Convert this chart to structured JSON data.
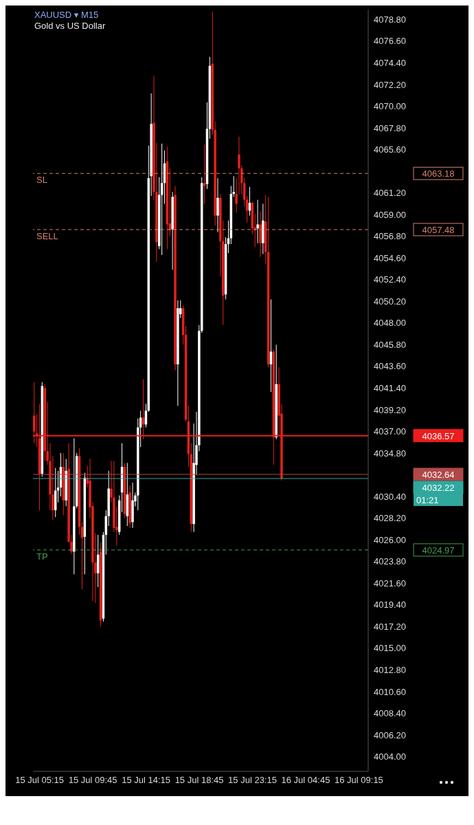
{
  "chart_data": {
    "type": "candlestick",
    "title": "XAUUSD ▾ M15",
    "subtitle": "Gold vs US Dollar",
    "categories": [
      null,
      null,
      "15 Jul 05:15",
      null,
      null,
      null,
      null,
      null,
      null,
      null,
      null,
      null,
      null,
      null,
      null,
      null,
      null,
      null,
      null,
      null,
      null,
      null,
      "15 Jul 09:45",
      null,
      null,
      null,
      null,
      null,
      null,
      null,
      null,
      null,
      null,
      null,
      null,
      null,
      null,
      null,
      null,
      null,
      null,
      null,
      "15 Jul 14:15",
      null,
      null,
      null,
      null,
      null,
      null,
      null,
      null,
      null,
      null,
      null,
      null,
      null,
      null,
      null,
      null,
      null,
      null,
      null,
      "15 Jul 18:45",
      null,
      null,
      null,
      null,
      null,
      null,
      null,
      null,
      null,
      null,
      null,
      null,
      null,
      null,
      null,
      null,
      null,
      null,
      null,
      "15 Jul 23:15",
      null,
      null,
      null,
      null,
      null,
      null,
      null,
      null,
      null,
      null,
      null,
      null,
      null,
      null,
      null,
      null,
      null,
      null,
      null,
      "16 Jul 04:45",
      null,
      null,
      null,
      null,
      null,
      null,
      null,
      null,
      null,
      null,
      null,
      null,
      null,
      null,
      null,
      null,
      null,
      null,
      null,
      "16 Jul 09:15",
      null,
      null,
      null
    ],
    "ohlc": [
      [
        4038.6,
        4042.0,
        4035.8,
        4037.0
      ],
      [
        4036.8,
        4038.7,
        4035.4,
        4036.5
      ],
      [
        4036.3,
        4039.8,
        4029.0,
        4032.7
      ],
      [
        4032.7,
        4042.0,
        4032.4,
        4041.6
      ],
      [
        4041.4,
        4041.8,
        4034.0,
        4035.0
      ],
      [
        4035.0,
        4040.0,
        4033.6,
        4034.0
      ],
      [
        4034.0,
        4035.8,
        4029.0,
        4030.6
      ],
      [
        4030.6,
        4034.5,
        4028.0,
        4029.0
      ],
      [
        4029.0,
        4033.3,
        4028.3,
        4031.0
      ],
      [
        4031.0,
        4033.0,
        4029.8,
        4031.3
      ],
      [
        4031.3,
        4034.8,
        4030.4,
        4033.4
      ],
      [
        4033.4,
        4034.8,
        4028.5,
        4030.0
      ],
      [
        4030.0,
        4034.2,
        4029.4,
        4033.0
      ],
      [
        4033.2,
        4035.8,
        4025.7,
        4025.8
      ],
      [
        4025.8,
        4026.5,
        4024.6,
        4024.8
      ],
      [
        4024.8,
        4036.3,
        4022.5,
        4029.4
      ],
      [
        4029.4,
        4034.8,
        4029.2,
        4034.5
      ],
      [
        4034.5,
        4035.3,
        4026.5,
        4027.3
      ],
      [
        4027.3,
        4027.8,
        4021.0,
        4026.2
      ],
      [
        4026.3,
        4032.8,
        4022.5,
        4032.3
      ],
      [
        4032.3,
        4033.5,
        4031.3,
        4031.7
      ],
      [
        4032.0,
        4034.2,
        4028.2,
        4029.3
      ],
      [
        4029.4,
        4029.8,
        4019.8,
        4023.7
      ],
      [
        4023.7,
        4026.7,
        4019.6,
        4022.6
      ],
      [
        4022.6,
        4026.5,
        4021.2,
        4024.5
      ],
      [
        4024.8,
        4025.7,
        4017.2,
        4017.8
      ],
      [
        4018.0,
        4026.8,
        4017.7,
        4026.5
      ],
      [
        4026.5,
        4029.0,
        4024.5,
        4028.4
      ],
      [
        4028.4,
        4033.0,
        4027.4,
        4031.2
      ],
      [
        4031.2,
        4034.0,
        4029.8,
        4030.3
      ],
      [
        4030.3,
        4034.0,
        4026.8,
        4027.2
      ],
      [
        4027.3,
        4029.4,
        4025.4,
        4027.0
      ],
      [
        4026.8,
        4030.5,
        4026.5,
        4030.0
      ],
      [
        4030.8,
        4035.8,
        4028.8,
        4033.4
      ],
      [
        4033.4,
        4033.8,
        4028.2,
        4028.6
      ],
      [
        4028.4,
        4033.8,
        4027.4,
        4030.6
      ],
      [
        4030.8,
        4031.5,
        4027.2,
        4027.7
      ],
      [
        4027.8,
        4031.8,
        4027.2,
        4030.0
      ],
      [
        4029.9,
        4030.8,
        4029.4,
        4030.5
      ],
      [
        4030.5,
        4038.3,
        4029.0,
        4037.4
      ],
      [
        4037.4,
        4039.1,
        4035.4,
        4038.4
      ],
      [
        4038.4,
        4042.3,
        4036.2,
        4037.7
      ],
      [
        4037.7,
        4039.8,
        4037.4,
        4039.1
      ],
      [
        4039.1,
        4066.0,
        4039.0,
        4062.7
      ],
      [
        4062.9,
        4071.3,
        4060.9,
        4068.2
      ],
      [
        4068.3,
        4073.1,
        4060.5,
        4061.3
      ],
      [
        4061.3,
        4066.3,
        4054.2,
        4056.2
      ],
      [
        4055.8,
        4062.8,
        4055.5,
        4061.0
      ],
      [
        4061.0,
        4066.2,
        4054.9,
        4062.2
      ],
      [
        4062.2,
        4065.5,
        4060.1,
        4064.2
      ],
      [
        4064.4,
        4065.9,
        4055.5,
        4058.0
      ],
      [
        4058.1,
        4063.7,
        4056.8,
        4057.4
      ],
      [
        4057.5,
        4061.3,
        4053.4,
        4060.8
      ],
      [
        4061.0,
        4061.9,
        4043.2,
        4043.8
      ],
      [
        4043.8,
        4050.3,
        4039.6,
        4049.5
      ],
      [
        4048.9,
        4050.3,
        4048.5,
        4049.5
      ],
      [
        4049.5,
        4049.8,
        4045.8,
        4046.8
      ],
      [
        4046.8,
        4047.7,
        4038.0,
        4038.2
      ],
      [
        4038.0,
        4039.6,
        4033.4,
        4034.7
      ],
      [
        4034.7,
        4035.8,
        4026.8,
        4027.6
      ],
      [
        4027.6,
        4037.8,
        4026.8,
        4033.8
      ],
      [
        4033.6,
        4039.0,
        4032.6,
        4035.6
      ],
      [
        4035.6,
        4047.8,
        4035.0,
        4047.2
      ],
      [
        4047.2,
        4062.8,
        4047.0,
        4062.2
      ],
      [
        4062.2,
        4066.1,
        4060.1,
        4061.9
      ],
      [
        4062.1,
        4070.4,
        4061.6,
        4067.7
      ],
      [
        4067.7,
        4075.0,
        4066.7,
        4074.1
      ],
      [
        4074.3,
        4079.6,
        4067.1,
        4067.6
      ],
      [
        4067.6,
        4068.5,
        4057.9,
        4058.9
      ],
      [
        4058.9,
        4062.7,
        4057.2,
        4060.7
      ],
      [
        4060.7,
        4061.1,
        4052.7,
        4056.3
      ],
      [
        4056.3,
        4058.4,
        4047.8,
        4050.8
      ],
      [
        4050.9,
        4056.7,
        4050.4,
        4056.0
      ],
      [
        4056.0,
        4058.4,
        4055.1,
        4056.6
      ],
      [
        4056.6,
        4061.9,
        4056.0,
        4061.1
      ],
      [
        4061.1,
        4062.9,
        4060.8,
        4061.3
      ],
      [
        4061.1,
        4062.7,
        4059.2,
        4060.1
      ],
      [
        4065.1,
        4066.9,
        4061.1,
        4063.7
      ],
      [
        4063.7,
        4064.0,
        4061.1,
        4062.2
      ],
      [
        4062.2,
        4062.7,
        4059.8,
        4060.5
      ],
      [
        4060.5,
        4060.9,
        4058.2,
        4059.4
      ],
      [
        4059.4,
        4061.8,
        4058.9,
        4060.2
      ],
      [
        4060.2,
        4060.3,
        4057.0,
        4057.6
      ],
      [
        4057.7,
        4059.1,
        4055.7,
        4057.4
      ],
      [
        4057.6,
        4060.5,
        4056.1,
        4058.0
      ],
      [
        4058.0,
        4059.3,
        4054.7,
        4056.1
      ],
      [
        4056.1,
        4060.1,
        4055.0,
        4058.4
      ],
      [
        4058.3,
        4061.0,
        4054.0,
        4055.2
      ],
      [
        4055.2,
        4060.8,
        4043.5,
        4043.8
      ],
      [
        4043.8,
        4050.4,
        4041.0,
        4045.1
      ],
      [
        4045.1,
        4045.3,
        4033.6,
        4036.4
      ],
      [
        4036.4,
        4045.8,
        4036.2,
        4041.8
      ],
      [
        4041.8,
        4043.5,
        4036.5,
        4038.6
      ],
      [
        4038.8,
        4039.8,
        4032.0,
        4032.22
      ],
      null,
      null,
      null,
      null,
      null,
      null,
      null,
      null,
      null,
      null,
      null,
      null,
      null,
      null,
      null,
      null,
      null,
      null,
      null,
      null,
      null,
      null,
      null,
      null,
      null,
      null,
      null,
      null,
      null,
      null,
      null,
      null
    ],
    "colors": [
      "#e3211c",
      "#e3211c",
      "#e3211c",
      "#ffffff",
      "#e3211c",
      "#e3211c",
      "#e3211c",
      "#e3211c",
      "#ffffff",
      "#ffffff",
      "#ffffff",
      "#e3211c",
      "#ffffff",
      "#e3211c",
      "#e3211c",
      "#ffffff",
      "#ffffff",
      "#e3211c",
      "#e3211c",
      "#ffffff",
      "#e3211c",
      "#e3211c",
      "#e3211c",
      "#e3211c",
      "#ffffff",
      "#e3211c",
      "#ffffff",
      "#ffffff",
      "#ffffff",
      "#e3211c",
      "#e3211c",
      "#e3211c",
      "#ffffff",
      "#ffffff",
      "#e3211c",
      "#ffffff",
      "#e3211c",
      "#ffffff",
      "#ffffff",
      "#ffffff",
      "#ffffff",
      "#e3211c",
      "#ffffff",
      "#ffffff",
      "#ffffff",
      "#e3211c",
      "#e3211c",
      "#ffffff",
      "#ffffff",
      "#ffffff",
      "#e3211c",
      "#e3211c",
      "#ffffff",
      "#e3211c",
      "#ffffff",
      "#ffffff",
      "#e3211c",
      "#e3211c",
      "#e3211c",
      "#e3211c",
      "#ffffff",
      "#ffffff",
      "#ffffff",
      "#ffffff",
      "#e3211c",
      "#ffffff",
      "#ffffff",
      "#e3211c",
      "#e3211c",
      "#ffffff",
      "#e3211c",
      "#e3211c",
      "#ffffff",
      "#ffffff",
      "#ffffff",
      "#ffffff",
      "#e3211c",
      "#e3211c",
      "#e3211c",
      "#e3211c",
      "#e3211c",
      "#ffffff",
      "#e3211c",
      "#e3211c",
      "#ffffff",
      "#e3211c",
      "#ffffff",
      "#e3211c",
      "#e3211c",
      "#ffffff",
      "#e3211c",
      "#ffffff",
      "#e3211c",
      "#e3211c",
      null,
      null,
      null,
      null,
      null,
      null,
      null,
      null,
      null,
      null,
      null,
      null,
      null,
      null,
      null,
      null,
      null,
      null,
      null,
      null,
      null,
      null,
      null,
      null,
      null,
      null,
      null,
      null,
      null,
      null,
      null,
      null
    ],
    "ylim": [
      4002.5,
      4079.8
    ],
    "yticks": [
      {
        "value": 4004.0,
        "label": "4004.00"
      },
      {
        "value": 4006.2,
        "label": "4006.20"
      },
      {
        "value": 4008.4,
        "label": "4008.40"
      },
      {
        "value": 4010.6,
        "label": "4010.60"
      },
      {
        "value": 4012.8,
        "label": "4012.80"
      },
      {
        "value": 4015.0,
        "label": "4015.00"
      },
      {
        "value": 4017.2,
        "label": "4017.20"
      },
      {
        "value": 4019.4,
        "label": "4019.40"
      },
      {
        "value": 4021.6,
        "label": "4021.60"
      },
      {
        "value": 4023.8,
        "label": "4023.80"
      },
      {
        "value": 4026.0,
        "label": "4026.00"
      },
      {
        "value": 4028.2,
        "label": "4028.20"
      },
      {
        "value": 4030.4,
        "label": "4030.40"
      },
      {
        "value": 4032.6,
        "label": null
      },
      {
        "value": 4034.8,
        "label": "4034.80"
      },
      {
        "value": 4037.0,
        "label": "4037.00"
      },
      {
        "value": 4039.2,
        "label": "4039.20"
      },
      {
        "value": 4041.4,
        "label": "4041.40"
      },
      {
        "value": 4043.6,
        "label": "4043.60"
      },
      {
        "value": 4045.8,
        "label": "4045.80"
      },
      {
        "value": 4048.0,
        "label": "4048.00"
      },
      {
        "value": 4050.2,
        "label": "4050.20"
      },
      {
        "value": 4052.4,
        "label": "4052.40"
      },
      {
        "value": 4054.6,
        "label": "4054.60"
      },
      {
        "value": 4056.8,
        "label": "4056.80"
      },
      {
        "value": 4059.0,
        "label": "4059.00"
      },
      {
        "value": 4061.2,
        "label": "4061.20"
      },
      {
        "value": 4063.4,
        "label": null
      },
      {
        "value": 4065.6,
        "label": "4065.60"
      },
      {
        "value": 4067.8,
        "label": "4067.80"
      },
      {
        "value": 4070.0,
        "label": "4070.00"
      },
      {
        "value": 4072.2,
        "label": "4072.20"
      },
      {
        "value": 4074.4,
        "label": "4074.40"
      },
      {
        "value": 4076.6,
        "label": "4076.60"
      },
      {
        "value": 4078.8,
        "label": "4078.80"
      }
    ],
    "ref_lines": [
      {
        "axis": "y",
        "value": 4063.18,
        "label": "SL",
        "color": "#d9826a",
        "line_style": "dashed"
      },
      {
        "axis": "y",
        "value": 4057.48,
        "label": "SELL",
        "color": "#d9826a",
        "line_style": "dashed"
      },
      {
        "axis": "y",
        "value": 4036.57,
        "color": "#ee1c1c",
        "line_style": "solid"
      },
      {
        "axis": "y",
        "value": 4032.64,
        "color": "#b04848",
        "line_style": "solid"
      },
      {
        "axis": "y",
        "value": 4032.22,
        "color": "#2fa89e",
        "line_style": "solid"
      },
      {
        "axis": "y",
        "value": 4024.97,
        "label": "TP",
        "color": "#43a04c",
        "line_style": "dashed"
      }
    ],
    "annotations": [
      "4063.18",
      "4057.48",
      "4036.57",
      "4032.64",
      "4032.22",
      "4024.97",
      "01:21"
    ]
  }
}
